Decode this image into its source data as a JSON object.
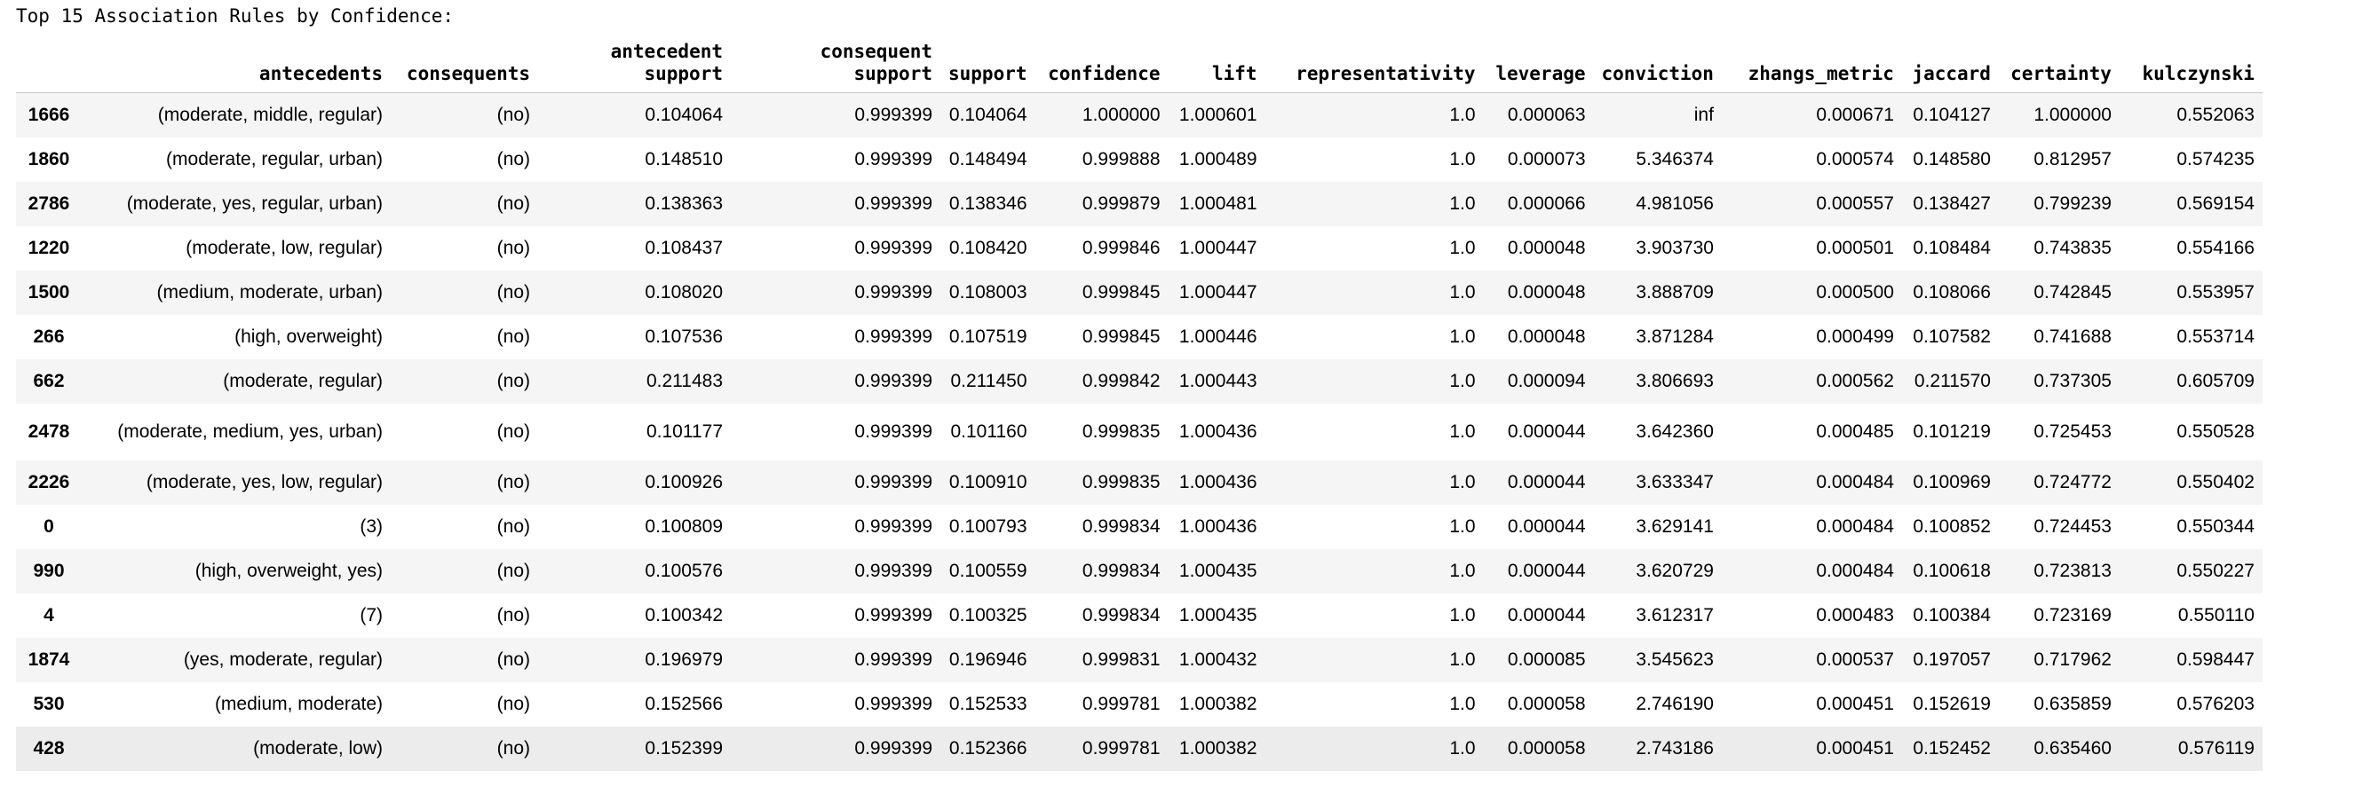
{
  "title": "Top 15 Association Rules by Confidence:",
  "columns": [
    "",
    "antecedents",
    "consequents",
    "antecedent support",
    "consequent support",
    "support",
    "confidence",
    "lift",
    "representativity",
    "leverage",
    "conviction",
    "zhangs_metric",
    "jaccard",
    "certainty",
    "kulczynski"
  ],
  "rows": [
    [
      "1666",
      "(moderate, middle, regular)",
      "(no)",
      "0.104064",
      "0.999399",
      "0.104064",
      "1.000000",
      "1.000601",
      "1.0",
      "0.000063",
      "inf",
      "0.000671",
      "0.104127",
      "1.000000",
      "0.552063"
    ],
    [
      "1860",
      "(moderate, regular, urban)",
      "(no)",
      "0.148510",
      "0.999399",
      "0.148494",
      "0.999888",
      "1.000489",
      "1.0",
      "0.000073",
      "5.346374",
      "0.000574",
      "0.148580",
      "0.812957",
      "0.574235"
    ],
    [
      "2786",
      "(moderate, yes, regular, urban)",
      "(no)",
      "0.138363",
      "0.999399",
      "0.138346",
      "0.999879",
      "1.000481",
      "1.0",
      "0.000066",
      "4.981056",
      "0.000557",
      "0.138427",
      "0.799239",
      "0.569154"
    ],
    [
      "1220",
      "(moderate, low, regular)",
      "(no)",
      "0.108437",
      "0.999399",
      "0.108420",
      "0.999846",
      "1.000447",
      "1.0",
      "0.000048",
      "3.903730",
      "0.000501",
      "0.108484",
      "0.743835",
      "0.554166"
    ],
    [
      "1500",
      "(medium, moderate, urban)",
      "(no)",
      "0.108020",
      "0.999399",
      "0.108003",
      "0.999845",
      "1.000447",
      "1.0",
      "0.000048",
      "3.888709",
      "0.000500",
      "0.108066",
      "0.742845",
      "0.553957"
    ],
    [
      "266",
      "(high, overweight)",
      "(no)",
      "0.107536",
      "0.999399",
      "0.107519",
      "0.999845",
      "1.000446",
      "1.0",
      "0.000048",
      "3.871284",
      "0.000499",
      "0.107582",
      "0.741688",
      "0.553714"
    ],
    [
      "662",
      "(moderate, regular)",
      "(no)",
      "0.211483",
      "0.999399",
      "0.211450",
      "0.999842",
      "1.000443",
      "1.0",
      "0.000094",
      "3.806693",
      "0.000562",
      "0.211570",
      "0.737305",
      "0.605709"
    ],
    [
      "2478",
      "(moderate, medium, yes, urban)",
      "(no)",
      "0.101177",
      "0.999399",
      "0.101160",
      "0.999835",
      "1.000436",
      "1.0",
      "0.000044",
      "3.642360",
      "0.000485",
      "0.101219",
      "0.725453",
      "0.550528"
    ],
    [
      "2226",
      "(moderate, yes, low, regular)",
      "(no)",
      "0.100926",
      "0.999399",
      "0.100910",
      "0.999835",
      "1.000436",
      "1.0",
      "0.000044",
      "3.633347",
      "0.000484",
      "0.100969",
      "0.724772",
      "0.550402"
    ],
    [
      "0",
      "(3)",
      "(no)",
      "0.100809",
      "0.999399",
      "0.100793",
      "0.999834",
      "1.000436",
      "1.0",
      "0.000044",
      "3.629141",
      "0.000484",
      "0.100852",
      "0.724453",
      "0.550344"
    ],
    [
      "990",
      "(high, overweight, yes)",
      "(no)",
      "0.100576",
      "0.999399",
      "0.100559",
      "0.999834",
      "1.000435",
      "1.0",
      "0.000044",
      "3.620729",
      "0.000484",
      "0.100618",
      "0.723813",
      "0.550227"
    ],
    [
      "4",
      "(7)",
      "(no)",
      "0.100342",
      "0.999399",
      "0.100325",
      "0.999834",
      "1.000435",
      "1.0",
      "0.000044",
      "3.612317",
      "0.000483",
      "0.100384",
      "0.723169",
      "0.550110"
    ],
    [
      "1874",
      "(yes, moderate, regular)",
      "(no)",
      "0.196979",
      "0.999399",
      "0.196946",
      "0.999831",
      "1.000432",
      "1.0",
      "0.000085",
      "3.545623",
      "0.000537",
      "0.197057",
      "0.717962",
      "0.598447"
    ],
    [
      "530",
      "(medium, moderate)",
      "(no)",
      "0.152566",
      "0.999399",
      "0.152533",
      "0.999781",
      "1.000382",
      "1.0",
      "0.000058",
      "2.746190",
      "0.000451",
      "0.152619",
      "0.635859",
      "0.576203"
    ],
    [
      "428",
      "(moderate, low)",
      "(no)",
      "0.152399",
      "0.999399",
      "0.152366",
      "0.999781",
      "1.000382",
      "1.0",
      "0.000058",
      "2.743186",
      "0.000451",
      "0.152452",
      "0.635460",
      "0.576119"
    ]
  ]
}
